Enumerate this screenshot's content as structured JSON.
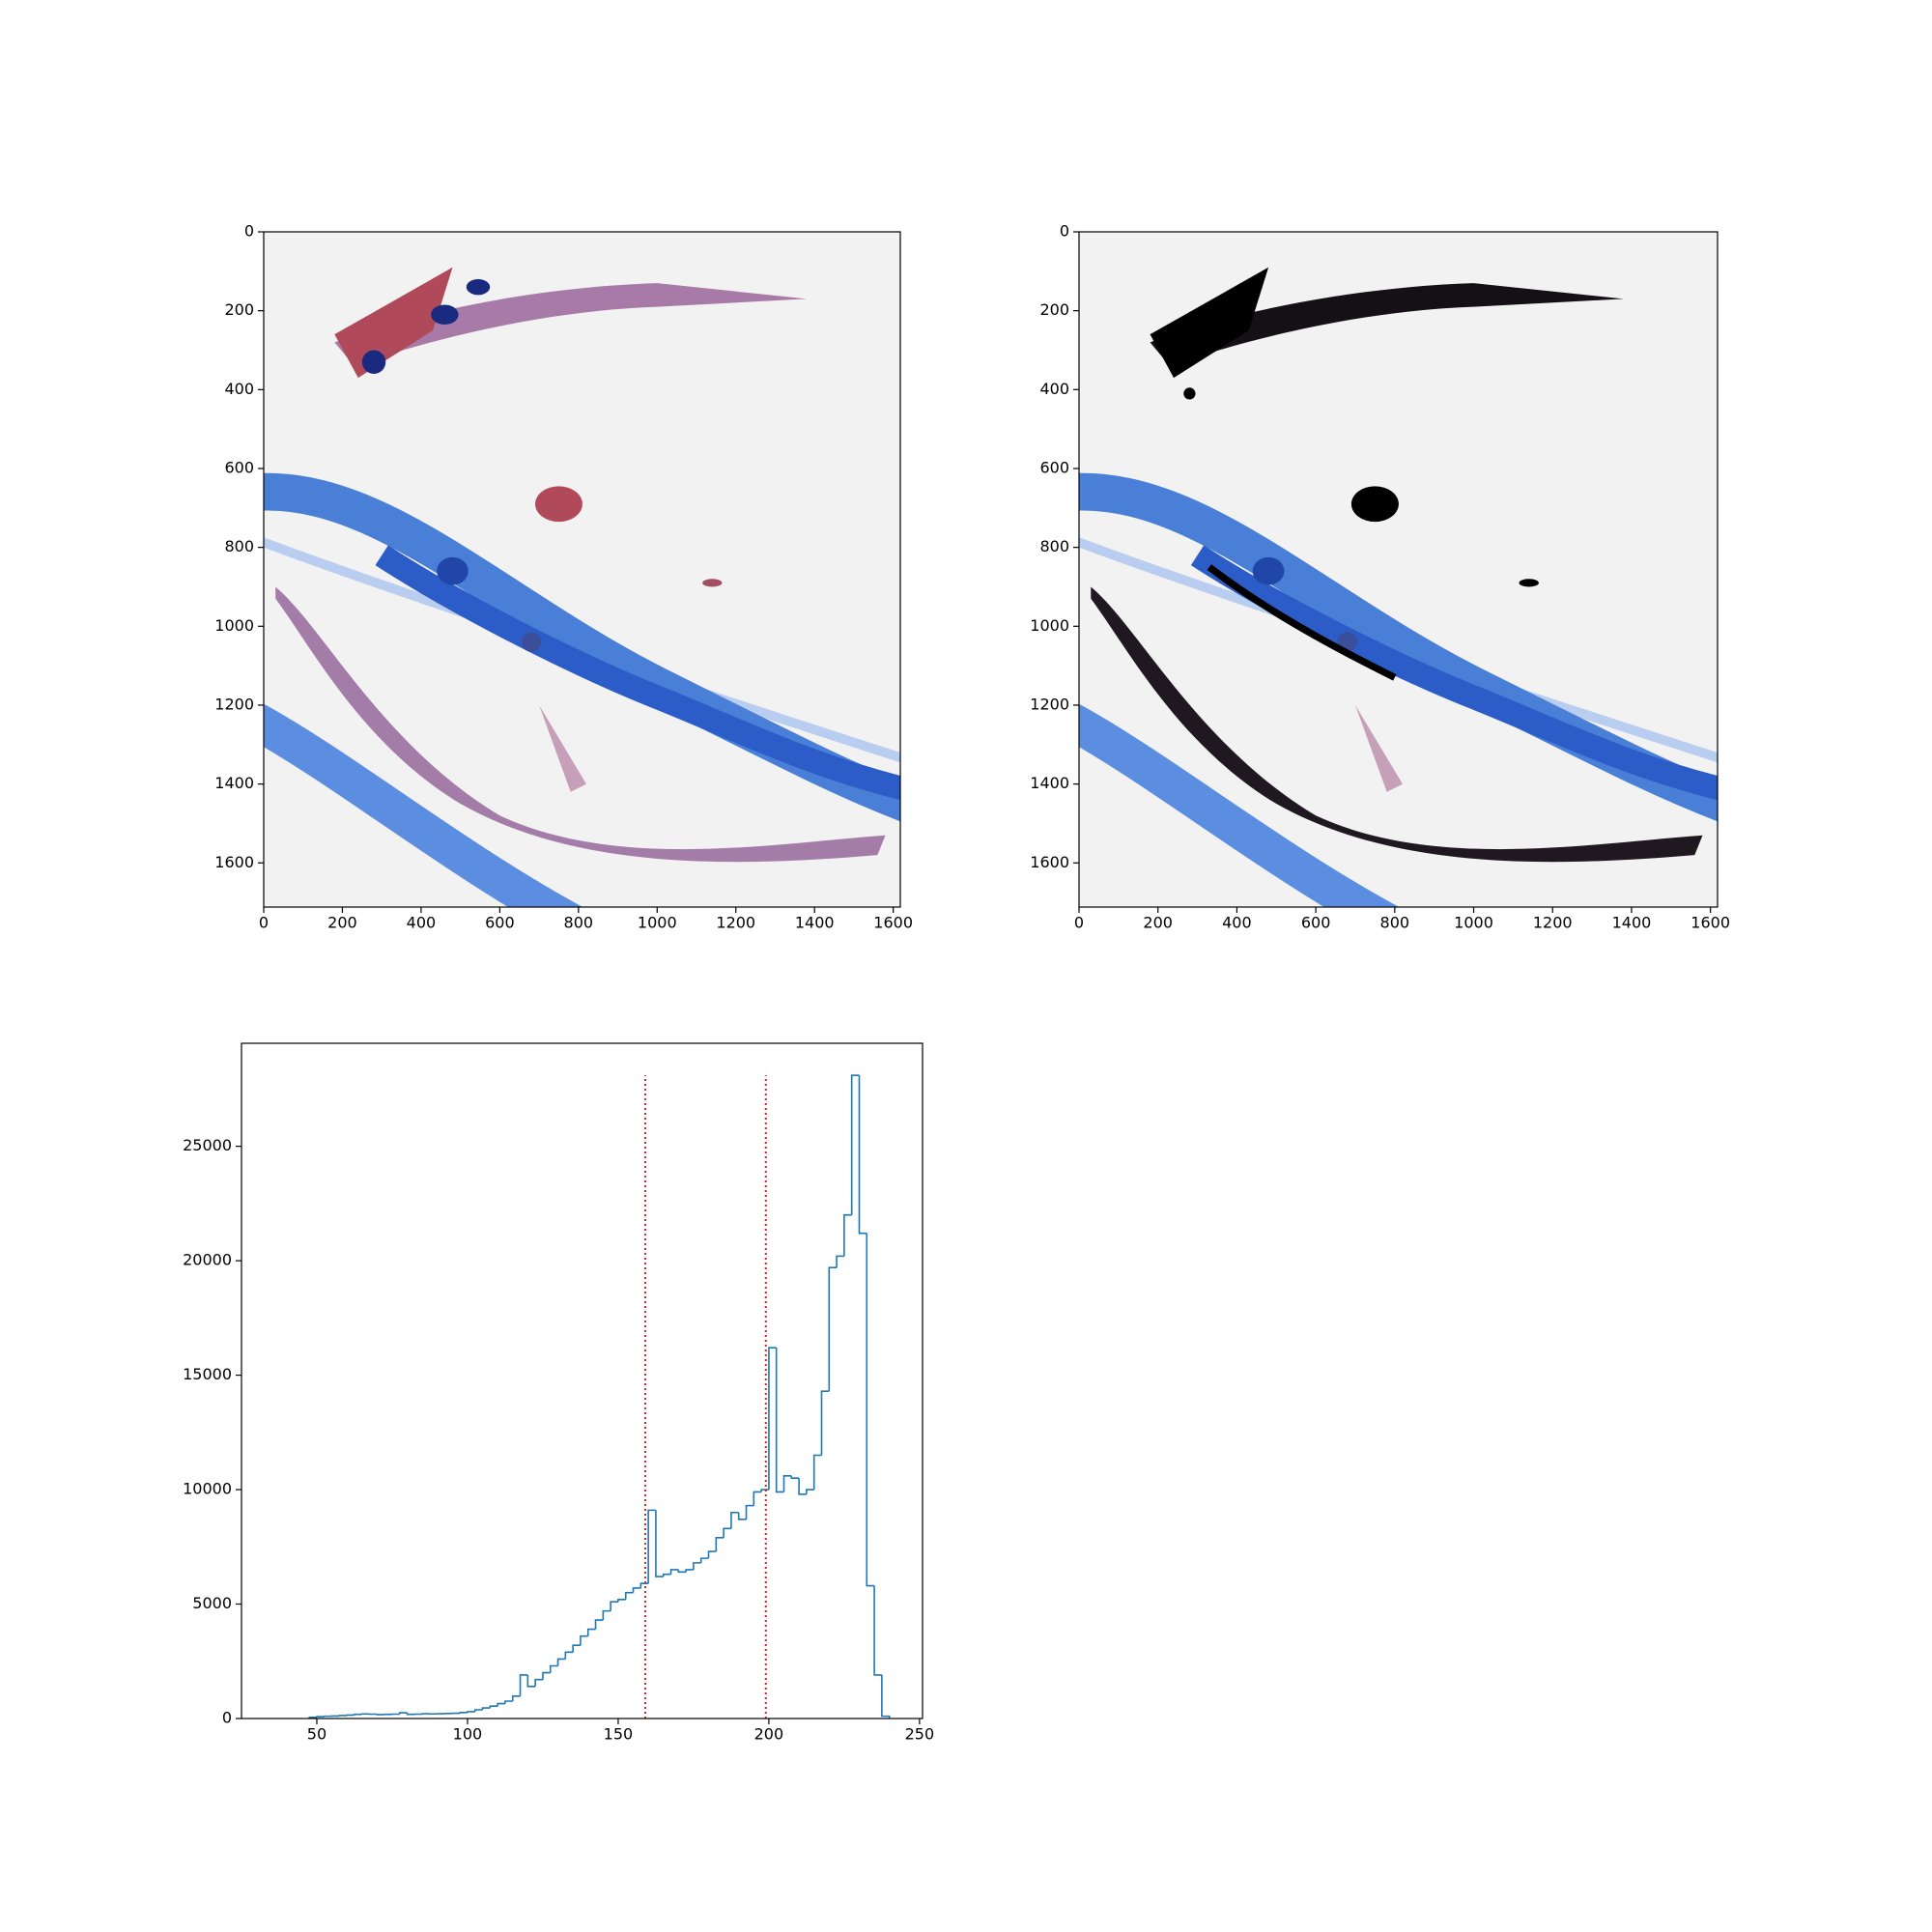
{
  "chart_data": [
    {
      "type": "image",
      "xlim": [
        0,
        1618
      ],
      "ylim": [
        1712,
        0
      ],
      "xticks": [
        0,
        200,
        400,
        600,
        800,
        1000,
        1200,
        1400,
        1600
      ],
      "yticks": [
        0,
        200,
        400,
        600,
        800,
        1000,
        1200,
        1400,
        1600
      ]
    },
    {
      "type": "image",
      "xlim": [
        0,
        1618
      ],
      "ylim": [
        1712,
        0
      ],
      "xticks": [
        0,
        200,
        400,
        600,
        800,
        1000,
        1200,
        1400,
        1600
      ],
      "yticks": [
        0,
        200,
        400,
        600,
        800,
        1000,
        1200,
        1400,
        1600
      ]
    },
    {
      "type": "histogram",
      "color": "#1f77b4",
      "bins": [
        47.5,
        50,
        52.5,
        55,
        57.5,
        60,
        62.5,
        65,
        67.5,
        70,
        72.5,
        75,
        77.5,
        80,
        82.5,
        85,
        87.5,
        90,
        92.5,
        95,
        97.5,
        100,
        102.5,
        105,
        107.5,
        110,
        112.5,
        115,
        117.5,
        120,
        122.5,
        125,
        127.5,
        130,
        132.5,
        135,
        137.5,
        140,
        142.5,
        145,
        147.5,
        150,
        152.5,
        155,
        157.5,
        160,
        162.5,
        165,
        167.5,
        170,
        172.5,
        175,
        177.5,
        180,
        182.5,
        185,
        187.5,
        190,
        192.5,
        195,
        197.5,
        200,
        202.5,
        205,
        207.5,
        210,
        212.5,
        215,
        217.5,
        220,
        222.5,
        225,
        227.5,
        230,
        232.5,
        235,
        237.5,
        240
      ],
      "counts": [
        50,
        80,
        100,
        110,
        130,
        150,
        180,
        200,
        190,
        170,
        180,
        190,
        250,
        180,
        190,
        210,
        200,
        210,
        220,
        230,
        260,
        300,
        380,
        460,
        540,
        650,
        760,
        980,
        1900,
        1400,
        1700,
        2000,
        2300,
        2600,
        2900,
        3200,
        3600,
        3900,
        4300,
        4700,
        5100,
        5200,
        5500,
        5700,
        5900,
        9100,
        6200,
        6300,
        6500,
        6400,
        6500,
        6800,
        7000,
        7300,
        7900,
        8300,
        9000,
        8700,
        9300,
        9900,
        10000,
        16200,
        9900,
        10600,
        10500,
        9800,
        10000,
        11500,
        14300,
        19700,
        20200,
        22000,
        28100,
        21200,
        5800,
        1900,
        100
      ],
      "vlines": {
        "x": [
          159,
          199
        ],
        "top": 28100,
        "color": "#d62728"
      },
      "xlim": [
        25,
        251
      ],
      "ylim": [
        0,
        29500
      ],
      "xticks": [
        50,
        100,
        150,
        200,
        250
      ],
      "yticks": [
        0,
        5000,
        10000,
        15000,
        20000,
        25000
      ]
    }
  ]
}
